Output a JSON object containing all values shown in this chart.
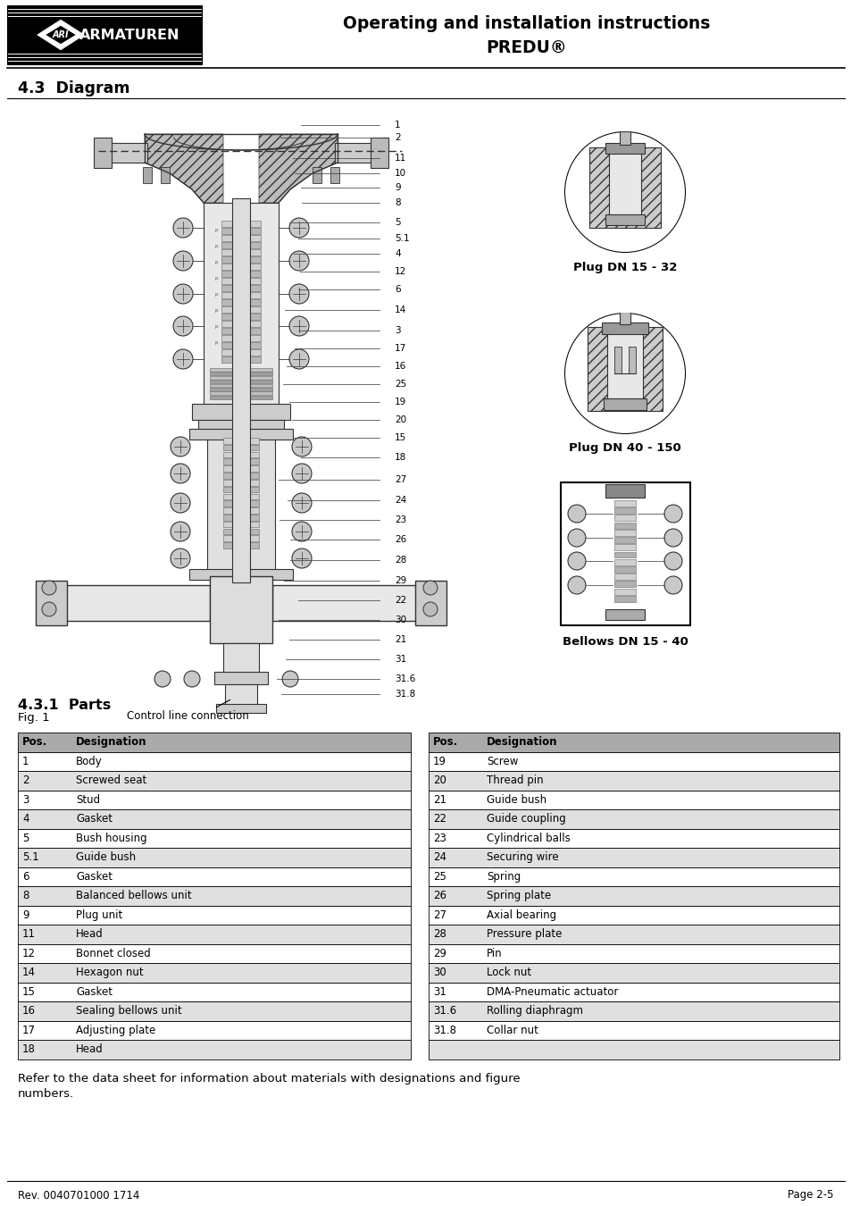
{
  "page_title_line1": "Operating and installation instructions",
  "page_title_line2": "PREDU®",
  "section_title": "4.3  Diagram",
  "fig_label": "Fig. 1",
  "parts_title": "4.3.1  Parts",
  "table_left": [
    [
      "Pos.",
      "Designation"
    ],
    [
      "1",
      "Body"
    ],
    [
      "2",
      "Screwed seat"
    ],
    [
      "3",
      "Stud"
    ],
    [
      "4",
      "Gasket"
    ],
    [
      "5",
      "Bush housing"
    ],
    [
      "5.1",
      "Guide bush"
    ],
    [
      "6",
      "Gasket"
    ],
    [
      "8",
      "Balanced bellows unit"
    ],
    [
      "9",
      "Plug unit"
    ],
    [
      "11",
      "Head"
    ],
    [
      "12",
      "Bonnet closed"
    ],
    [
      "14",
      "Hexagon nut"
    ],
    [
      "15",
      "Gasket"
    ],
    [
      "16",
      "Sealing bellows unit"
    ],
    [
      "17",
      "Adjusting plate"
    ],
    [
      "18",
      "Head"
    ]
  ],
  "table_right": [
    [
      "Pos.",
      "Designation"
    ],
    [
      "19",
      "Screw"
    ],
    [
      "20",
      "Thread pin"
    ],
    [
      "21",
      "Guide bush"
    ],
    [
      "22",
      "Guide coupling"
    ],
    [
      "23",
      "Cylindrical balls"
    ],
    [
      "24",
      "Securing wire"
    ],
    [
      "25",
      "Spring"
    ],
    [
      "26",
      "Spring plate"
    ],
    [
      "27",
      "Axial bearing"
    ],
    [
      "28",
      "Pressure plate"
    ],
    [
      "29",
      "Pin"
    ],
    [
      "30",
      "Lock nut"
    ],
    [
      "31",
      "DMA-Pneumatic actuator"
    ],
    [
      "31.6",
      "Rolling diaphragm"
    ],
    [
      "31.8",
      "Collar nut"
    ],
    [
      "",
      ""
    ]
  ],
  "caption_left": "Control line connection",
  "caption_plug1": "Plug DN 15 - 32",
  "caption_plug2": "Plug DN 40 - 150",
  "caption_bellows": "Bellows DN 15 - 40",
  "footer_left": "Rev. 0040701000 1714",
  "footer_right": "Page 2-5",
  "bottom_text_1": "Refer to the data sheet for information about materials with designations and figure",
  "bottom_text_2": "numbers.",
  "table_header_bg": "#aaaaaa",
  "table_alt_bg": "#e0e0e0",
  "table_white_bg": "#ffffff",
  "label_nums": [
    "1",
    "2",
    "11",
    "10",
    "9",
    "8",
    "5",
    "5.1",
    "4",
    "12",
    "6",
    "14",
    "3",
    "17",
    "16",
    "25",
    "19",
    "20",
    "15",
    "18",
    "27",
    "24",
    "23",
    "26",
    "28",
    "29",
    "22",
    "30",
    "21",
    "31",
    "31.6",
    "31.8"
  ]
}
